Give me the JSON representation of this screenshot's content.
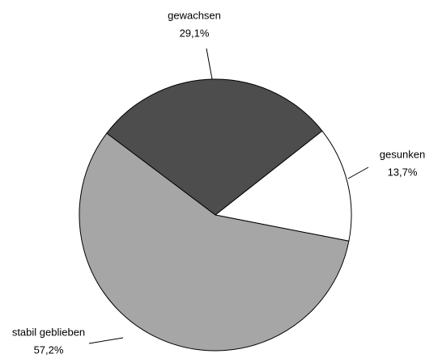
{
  "chart_data": {
    "type": "pie",
    "categories": [
      "gewachsen",
      "gesunken",
      "stabil geblieben"
    ],
    "values": [
      29.1,
      13.7,
      57.2
    ],
    "value_labels": [
      "29,1%",
      "13,7%",
      "57,2%"
    ],
    "colors": [
      "#4d4d4d",
      "#ffffff",
      "#a6a6a6"
    ]
  }
}
